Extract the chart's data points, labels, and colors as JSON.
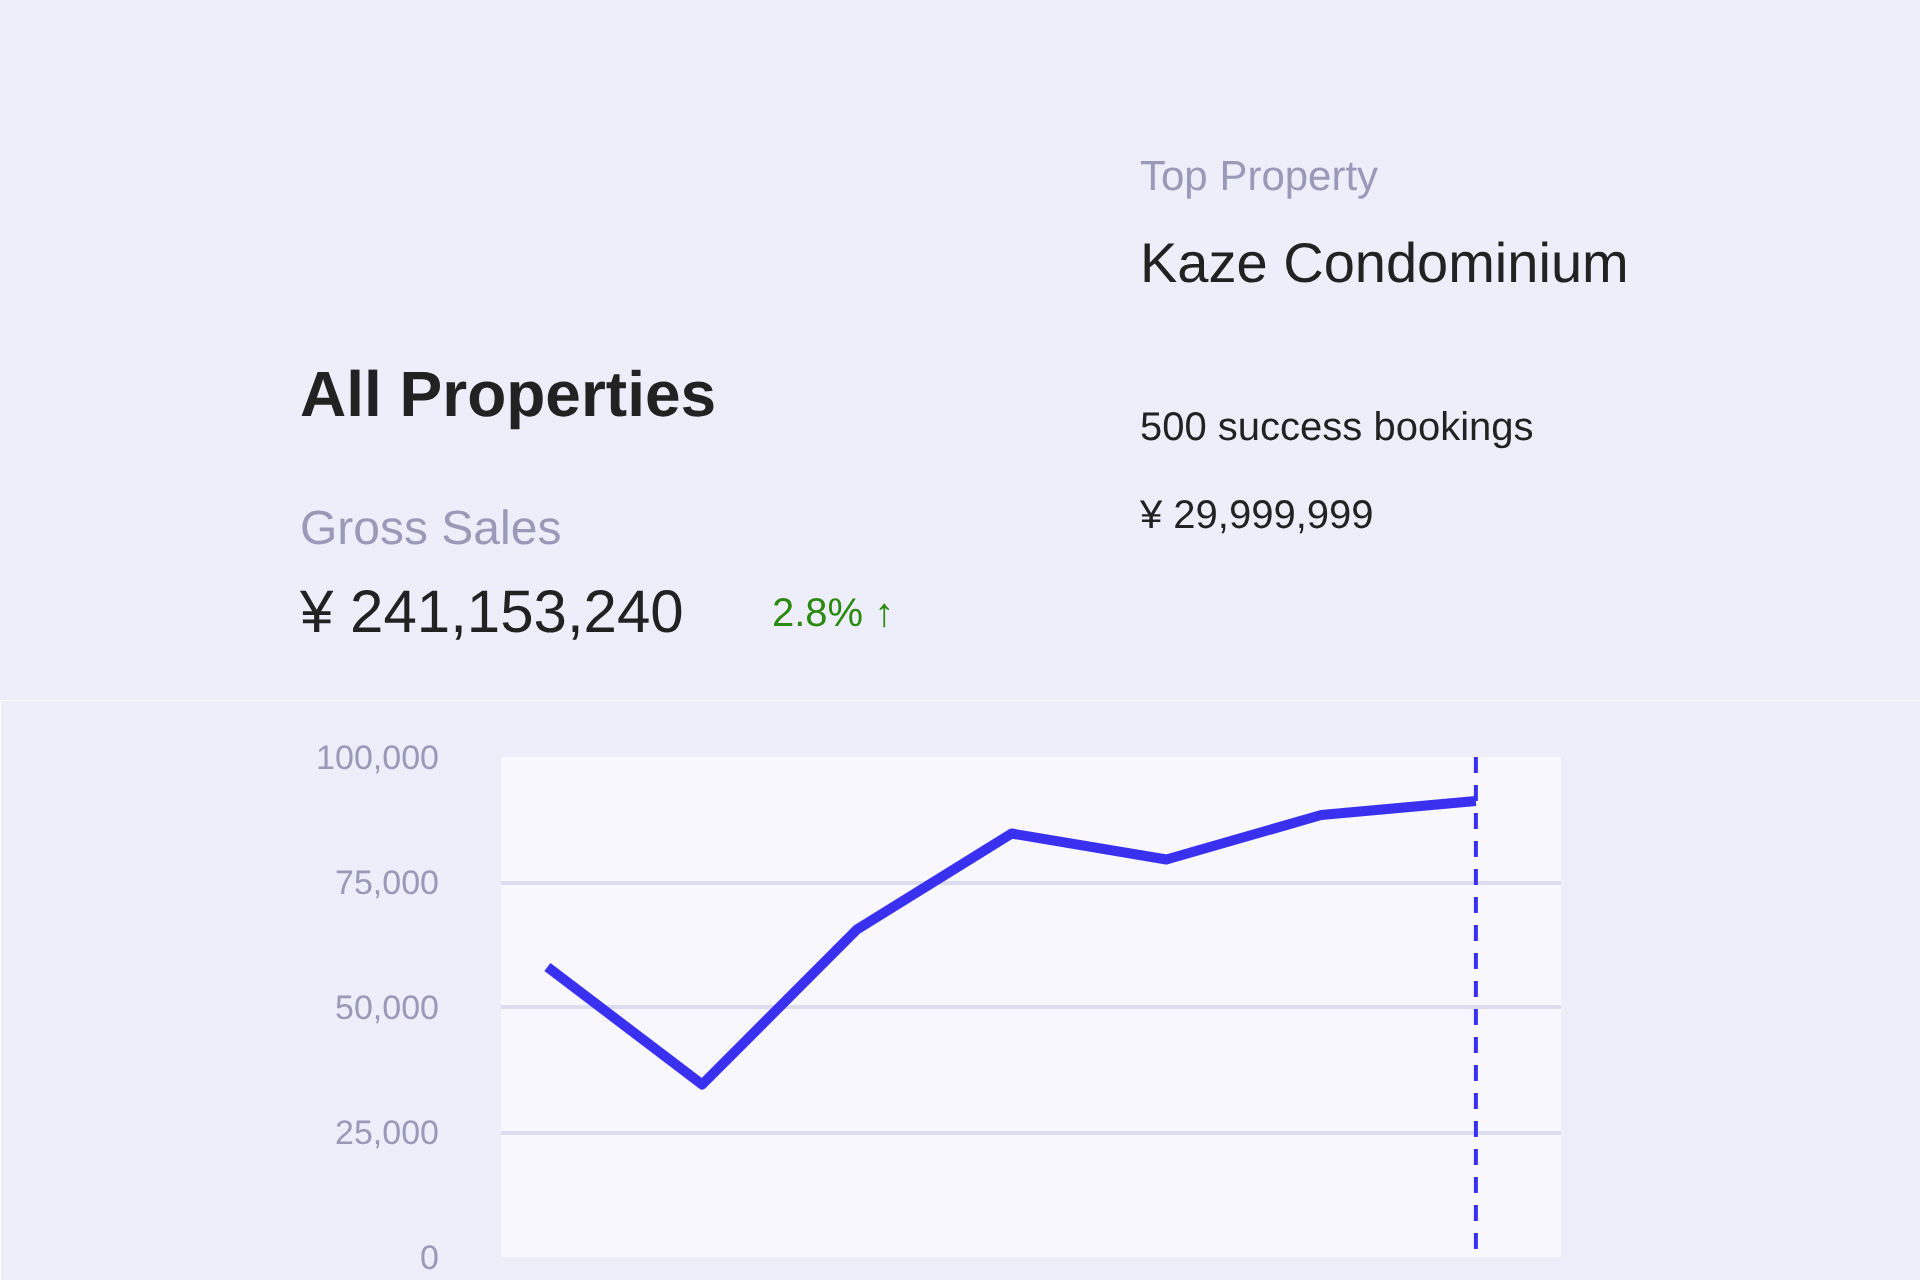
{
  "chart_data": {
    "type": "line",
    "title": "All Properties",
    "subtitle": "Gross Sales",
    "categories": [
      null,
      null,
      null,
      null,
      null,
      null,
      null
    ],
    "series": [
      {
        "color": "#3a30f0",
        "values": [
          58000,
          34500,
          65500,
          84700,
          79500,
          88400,
          91200
        ]
      }
    ],
    "ylim": [
      0,
      100000
    ],
    "yticks": [
      {
        "value": 0,
        "label": "0"
      },
      {
        "value": 25000,
        "label": "25,000"
      },
      {
        "value": 50000,
        "label": "50,000"
      },
      {
        "value": 75000,
        "label": "75,000"
      },
      {
        "value": 100000,
        "label": "100,000"
      }
    ],
    "grid": "y",
    "annotations": [
      "¥ 241,153,240",
      "2.8% ↑",
      "Top Property",
      "Kaze Condominium",
      "500 success bookings",
      "¥ 29,999,999"
    ]
  }
}
